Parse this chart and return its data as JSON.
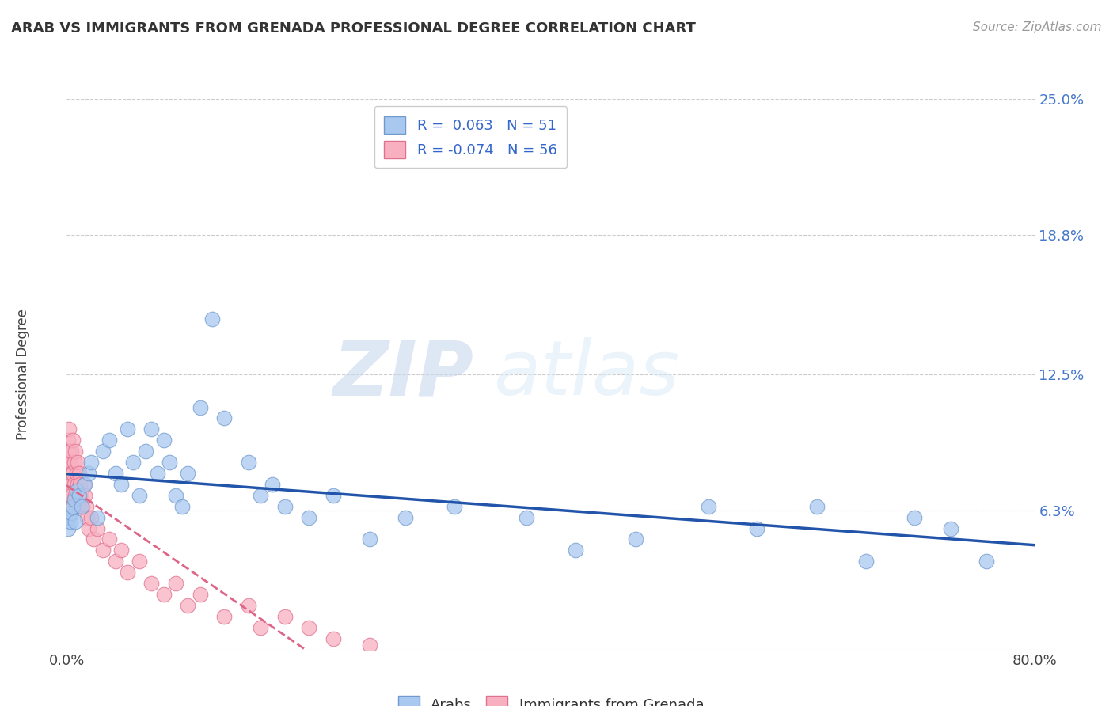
{
  "title": "ARAB VS IMMIGRANTS FROM GRENADA PROFESSIONAL DEGREE CORRELATION CHART",
  "source": "Source: ZipAtlas.com",
  "ylabel": "Professional Degree",
  "arab_R": 0.063,
  "arab_N": 51,
  "grenada_R": -0.074,
  "grenada_N": 56,
  "xlim": [
    0.0,
    0.8
  ],
  "ylim": [
    0.0,
    0.25
  ],
  "ytick_values": [
    0.0,
    0.063,
    0.125,
    0.188,
    0.25
  ],
  "ytick_labels": [
    "",
    "6.3%",
    "12.5%",
    "18.8%",
    "25.0%"
  ],
  "grid_color": "#cccccc",
  "arab_color": "#a8c8f0",
  "arab_edge": "#7099cc",
  "grenada_color": "#f8b0c0",
  "grenada_edge": "#e07090",
  "arab_line_color": "#2255aa",
  "grenada_line_color": "#dd6688",
  "watermark_zip": "ZIP",
  "watermark_atlas": "atlas",
  "legend_arab": "Arabs",
  "legend_grenada": "Immigrants from Grenada",
  "arab_x": [
    0.001,
    0.002,
    0.003,
    0.004,
    0.005,
    0.006,
    0.007,
    0.008,
    0.01,
    0.012,
    0.015,
    0.018,
    0.02,
    0.025,
    0.03,
    0.035,
    0.04,
    0.045,
    0.05,
    0.055,
    0.06,
    0.065,
    0.07,
    0.075,
    0.08,
    0.085,
    0.09,
    0.095,
    0.1,
    0.11,
    0.12,
    0.13,
    0.15,
    0.16,
    0.17,
    0.18,
    0.2,
    0.22,
    0.25,
    0.28,
    0.32,
    0.38,
    0.42,
    0.47,
    0.53,
    0.57,
    0.62,
    0.66,
    0.7,
    0.73,
    0.76
  ],
  "arab_y": [
    0.055,
    0.06,
    0.058,
    0.062,
    0.065,
    0.068,
    0.058,
    0.072,
    0.07,
    0.065,
    0.075,
    0.08,
    0.085,
    0.06,
    0.09,
    0.095,
    0.08,
    0.075,
    0.1,
    0.085,
    0.07,
    0.09,
    0.1,
    0.08,
    0.095,
    0.085,
    0.07,
    0.065,
    0.08,
    0.11,
    0.15,
    0.105,
    0.085,
    0.07,
    0.075,
    0.065,
    0.06,
    0.07,
    0.05,
    0.06,
    0.065,
    0.06,
    0.045,
    0.05,
    0.065,
    0.055,
    0.065,
    0.04,
    0.06,
    0.055,
    0.04
  ],
  "grenada_x": [
    0.001,
    0.001,
    0.001,
    0.001,
    0.002,
    0.002,
    0.002,
    0.002,
    0.003,
    0.003,
    0.003,
    0.004,
    0.004,
    0.004,
    0.005,
    0.005,
    0.005,
    0.006,
    0.006,
    0.007,
    0.007,
    0.008,
    0.008,
    0.009,
    0.009,
    0.01,
    0.01,
    0.011,
    0.012,
    0.013,
    0.014,
    0.015,
    0.016,
    0.017,
    0.018,
    0.02,
    0.022,
    0.025,
    0.03,
    0.035,
    0.04,
    0.045,
    0.05,
    0.06,
    0.07,
    0.08,
    0.09,
    0.1,
    0.11,
    0.13,
    0.15,
    0.16,
    0.18,
    0.2,
    0.22,
    0.25
  ],
  "grenada_y": [
    0.095,
    0.085,
    0.075,
    0.065,
    0.09,
    0.08,
    0.07,
    0.1,
    0.085,
    0.075,
    0.065,
    0.09,
    0.08,
    0.07,
    0.095,
    0.08,
    0.065,
    0.085,
    0.075,
    0.09,
    0.07,
    0.08,
    0.065,
    0.085,
    0.075,
    0.08,
    0.065,
    0.075,
    0.07,
    0.065,
    0.075,
    0.07,
    0.065,
    0.06,
    0.055,
    0.06,
    0.05,
    0.055,
    0.045,
    0.05,
    0.04,
    0.045,
    0.035,
    0.04,
    0.03,
    0.025,
    0.03,
    0.02,
    0.025,
    0.015,
    0.02,
    0.01,
    0.015,
    0.01,
    0.005,
    0.002
  ]
}
